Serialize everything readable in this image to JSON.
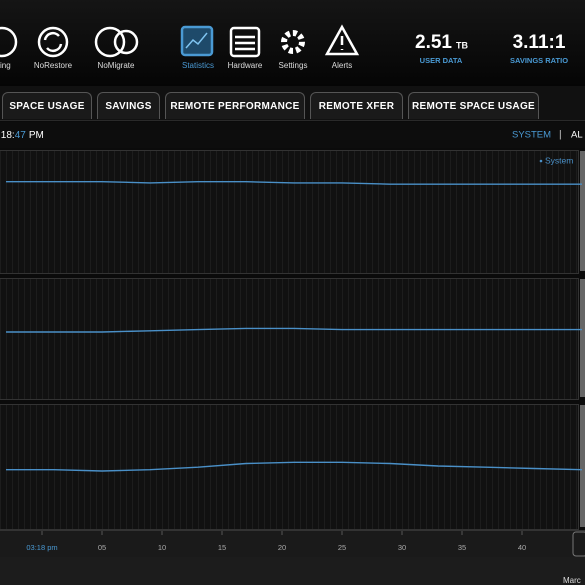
{
  "toolbar": {
    "items": [
      "ating",
      "NoRestore",
      "NoMigrate",
      "Statistics",
      "Hardware",
      "Settings",
      "Alerts"
    ],
    "stats": [
      {
        "value": "2.51",
        "unit": "TB",
        "label": "USER DATA"
      },
      {
        "value": "3.11:1",
        "label": "SAVINGS RATIO"
      }
    ]
  },
  "tabs": [
    "SPACE USAGE",
    "SAVINGS",
    "REMOTE PERFORMANCE",
    "REMOTE XFER",
    "REMOTE SPACE USAGE"
  ],
  "clock": {
    "start": ":18:",
    "highlight": "47",
    "end": "PM"
  },
  "view": {
    "options": [
      "SYSTEM",
      "AL"
    ],
    "separator": "|"
  },
  "chart_data": [
    {
      "type": "line",
      "x": [
        -3,
        1,
        5,
        9,
        13,
        17,
        21,
        25,
        29,
        33,
        37,
        41,
        45
      ],
      "xlim": [
        -3.5,
        45.25
      ],
      "ylim": [
        0,
        100
      ],
      "series": [
        {
          "name": "System",
          "color": "#4a90c8",
          "values": [
            74,
            74,
            74,
            73,
            74,
            74,
            73,
            73,
            72,
            72,
            72,
            72,
            72
          ]
        }
      ]
    },
    {
      "type": "line",
      "x": [
        -3,
        1,
        5,
        9,
        13,
        17,
        21,
        25,
        29,
        33,
        37,
        41,
        45
      ],
      "xlim": [
        -3.5,
        45.25
      ],
      "ylim": [
        0,
        100
      ],
      "series": [
        {
          "color": "#4a90c8",
          "values": [
            55,
            55,
            55,
            56,
            57,
            58,
            58,
            57,
            57,
            57,
            57,
            57,
            57
          ]
        }
      ]
    },
    {
      "type": "line",
      "x": [
        -3,
        1,
        5,
        9,
        13,
        17,
        21,
        25,
        29,
        33,
        37,
        41,
        45
      ],
      "xlim": [
        -3.5,
        45.25
      ],
      "ylim": [
        0,
        100
      ],
      "series": [
        {
          "color": "#4a90c8",
          "values": [
            47,
            47,
            46,
            47,
            49,
            52,
            53,
            53,
            52,
            50,
            49,
            48,
            47
          ]
        }
      ],
      "xticks": [
        {
          "value": 0,
          "label": "03:18 pm"
        },
        {
          "value": 5,
          "label": "05"
        },
        10,
        15,
        20,
        25,
        30,
        35,
        40
      ]
    }
  ],
  "footer": "Marc"
}
